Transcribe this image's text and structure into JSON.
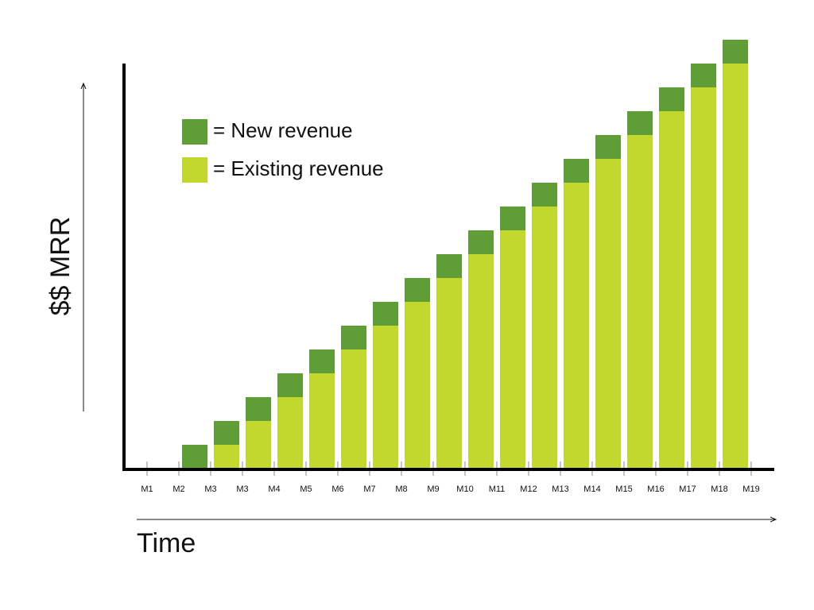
{
  "chart_data": {
    "type": "stacked-bar",
    "y_label": "$$ MRR",
    "x_label": "Time",
    "categories": [
      "M1",
      "M2",
      "M3",
      "M3",
      "M4",
      "M5",
      "M6",
      "M7",
      "M8",
      "M9",
      "M10",
      "M11",
      "M12",
      "M13",
      "M14",
      "M15",
      "M16",
      "M17",
      "M18",
      "M19"
    ],
    "series": [
      {
        "name": "= Existing revenue",
        "color": "#c2d82f",
        "values": [
          null,
          0,
          1,
          2,
          3,
          4,
          5,
          6,
          7,
          8,
          9,
          10,
          11,
          12,
          13,
          14,
          15,
          16,
          17,
          null
        ]
      },
      {
        "name": "= New revenue",
        "color": "#5f9e37",
        "values": [
          null,
          1,
          1,
          1,
          1,
          1,
          1,
          1,
          1,
          1,
          1,
          1,
          1,
          1,
          1,
          1,
          1,
          1,
          1,
          null
        ]
      }
    ],
    "ylim": [
      0,
      18
    ]
  }
}
